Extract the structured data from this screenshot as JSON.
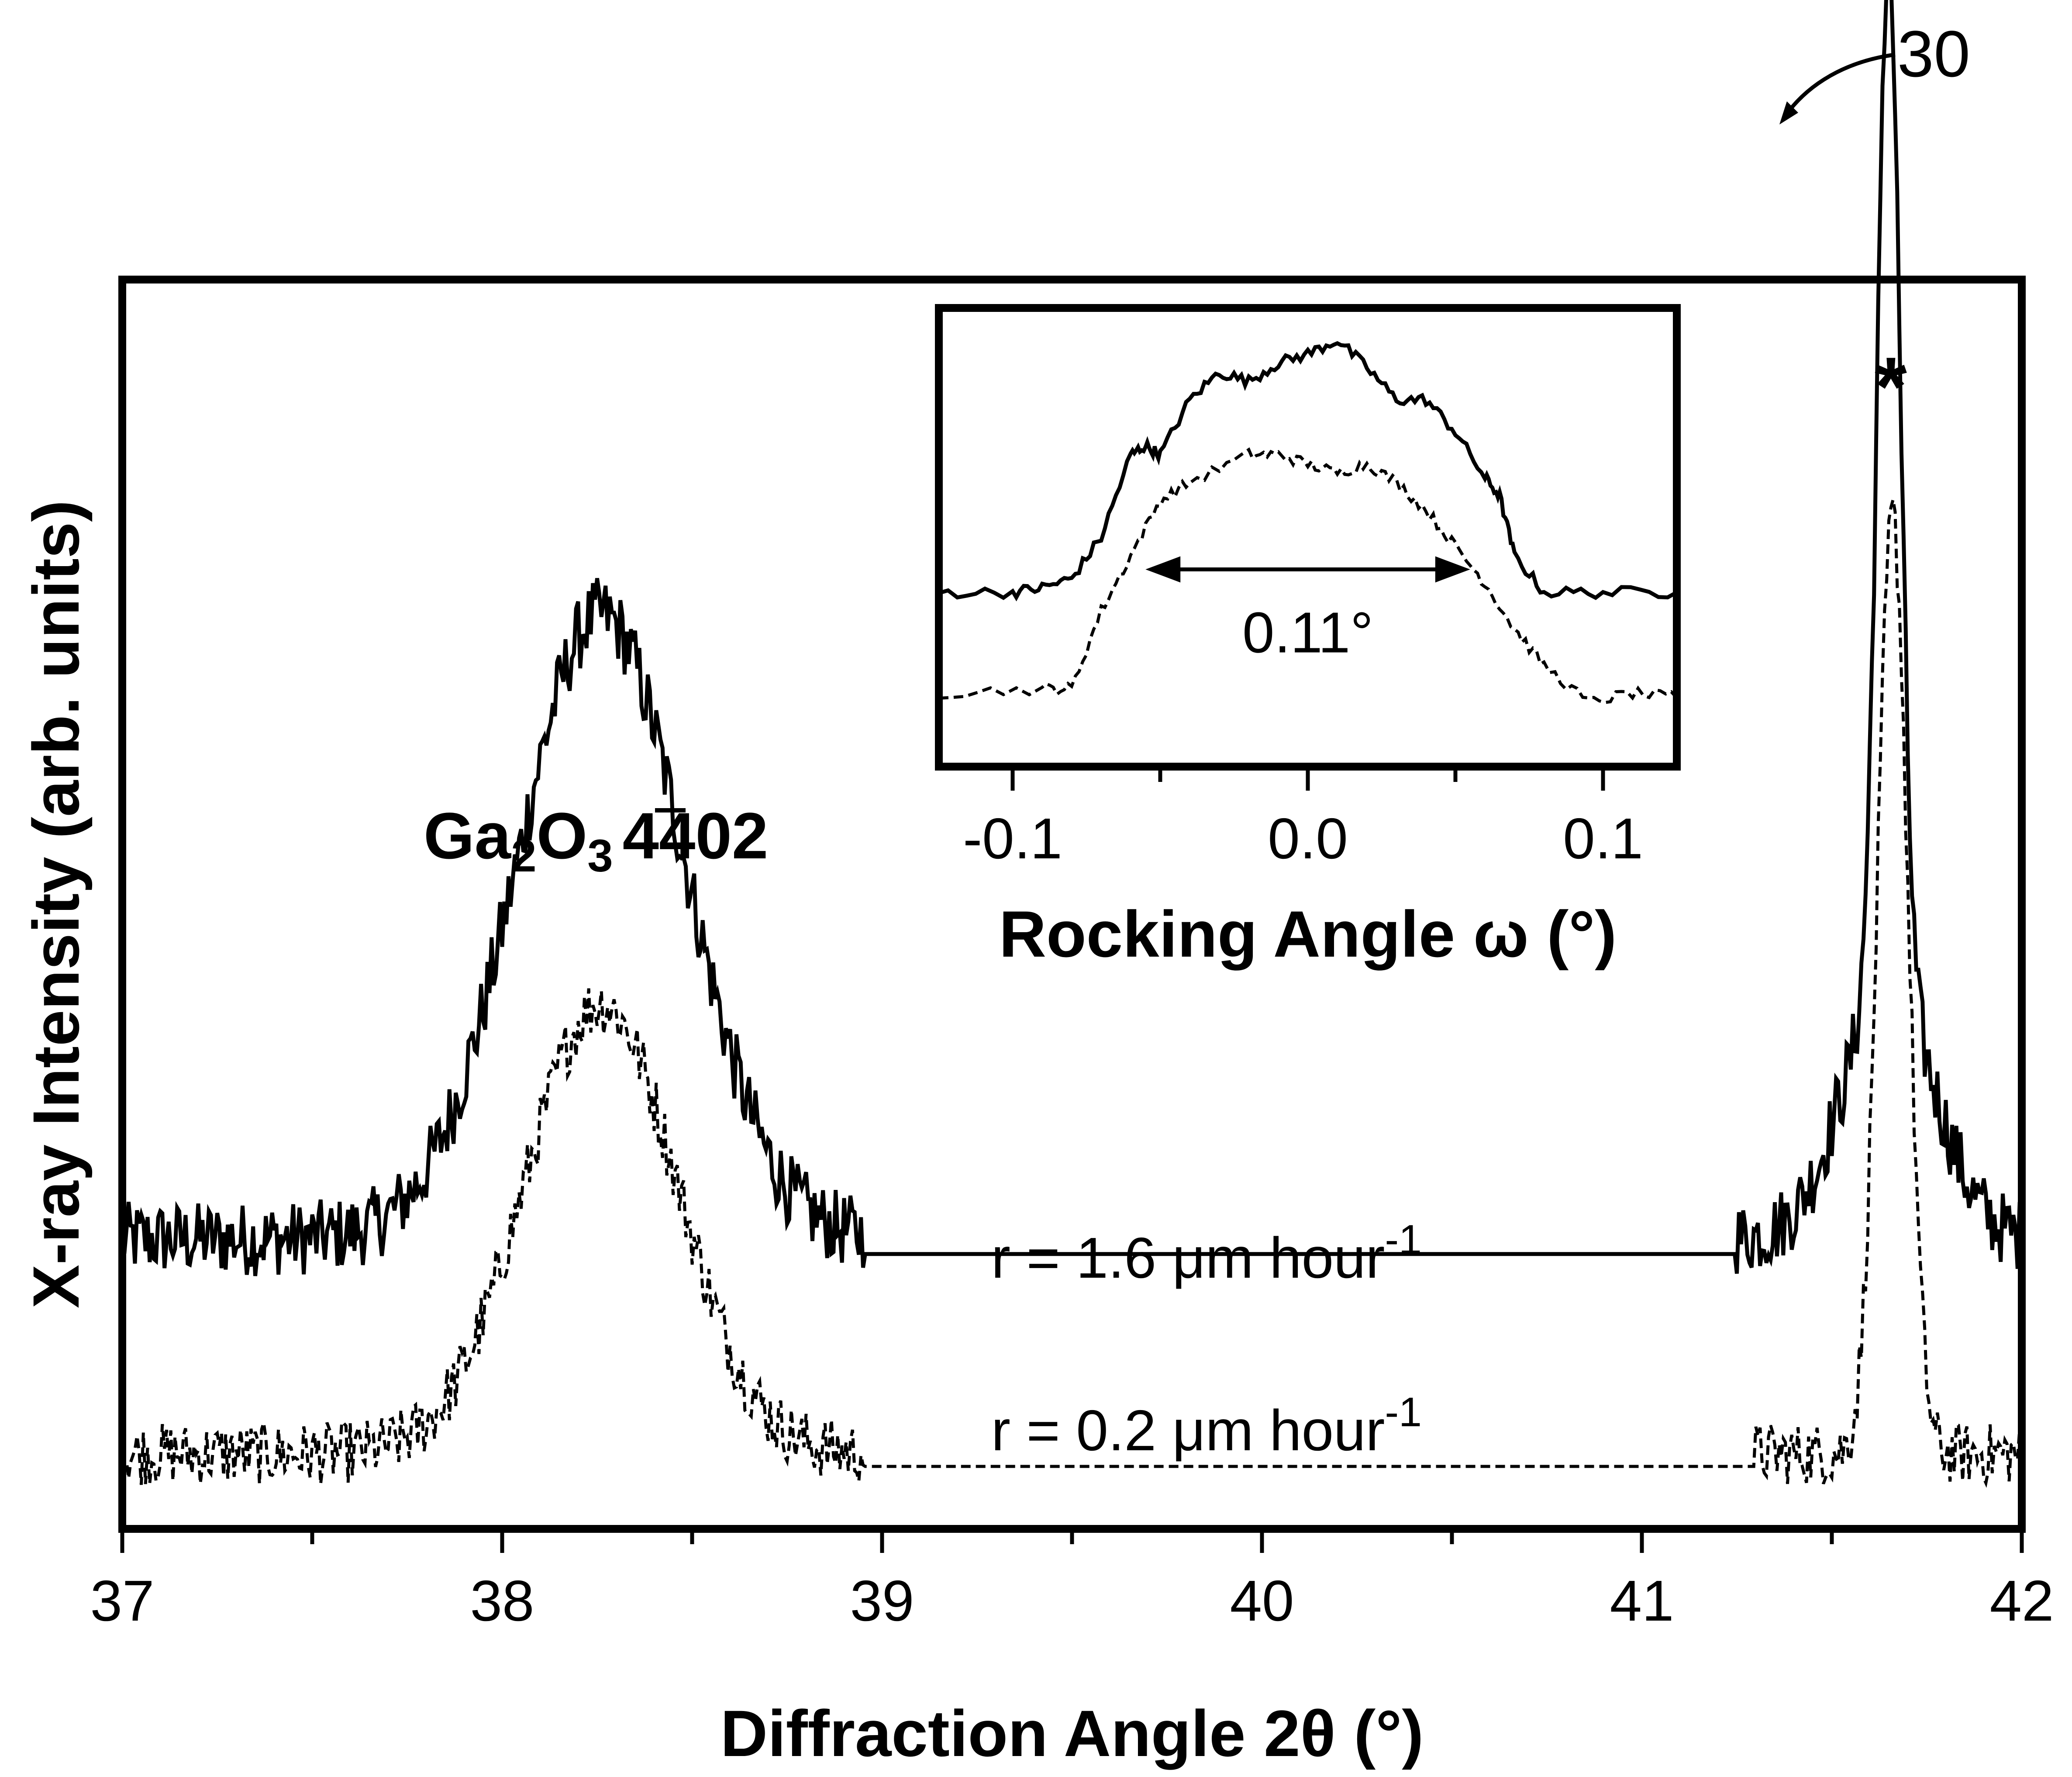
{
  "figure_number": "30",
  "colors": {
    "ink": "#000000",
    "background": "#ffffff"
  },
  "chart_data": [
    {
      "type": "line",
      "title": "",
      "xlabel": "Diffraction Angle 2θ (°)",
      "ylabel": "X-ray Intensity (arb. units)",
      "xlim": [
        37,
        42
      ],
      "ylim": [
        0,
        1
      ],
      "x_ticks": [
        "37",
        "38",
        "39",
        "40",
        "41",
        "42"
      ],
      "y_ticks": [],
      "grid": false,
      "legend": "none",
      "annotations": {
        "peak_label": {
          "base": "Ga",
          "sub1": "2",
          "mid": "O",
          "sub2": "3",
          "miller": "402",
          "bar_over": "4"
        },
        "substrate_marker": "*",
        "series_1_label": {
          "prefix": "r = 1.6 μm hour",
          "sup": "-1"
        },
        "series_2_label": {
          "prefix": "r = 0.2 μm hour",
          "sup": "-1"
        }
      },
      "series": [
        {
          "name": "r = 1.6 μm hour-1",
          "style": "solid",
          "baseline": 0.22,
          "x_range": [
            37,
            42
          ],
          "gap": [
            38.95,
            41.25
          ],
          "peaks": [
            {
              "center": 38.26,
              "height": 0.5,
              "sigma": 0.22
            },
            {
              "center": 41.65,
              "height": 0.82,
              "sigma": 0.03
            },
            {
              "center": 41.65,
              "height": 0.2,
              "sigma": 0.12
            }
          ]
        },
        {
          "name": "r = 0.2 μm hour-1",
          "style": "dashed",
          "baseline": 0.05,
          "x_range": [
            37,
            42
          ],
          "gap": [
            38.95,
            41.3
          ],
          "peaks": [
            {
              "center": 38.26,
              "height": 0.36,
              "sigma": 0.2
            },
            {
              "center": 41.66,
              "height": 0.75,
              "sigma": 0.04
            }
          ]
        }
      ]
    },
    {
      "type": "line",
      "title": "",
      "xlabel": "Rocking Angle ω (°)",
      "ylabel": "",
      "xlim": [
        -0.125,
        0.125
      ],
      "ylim": [
        0,
        1
      ],
      "x_ticks": [
        "-0.1",
        "0.0",
        "0.1"
      ],
      "grid": false,
      "legend": "none",
      "fwhm_annotation": "0.11°",
      "fwhm_range": [
        -0.055,
        0.055
      ],
      "series": [
        {
          "name": "",
          "style": "solid",
          "baseline": 0.38,
          "x": [
            -0.125,
            -0.1,
            -0.09,
            -0.08,
            -0.07,
            -0.06,
            -0.055,
            -0.05,
            -0.04,
            -0.03,
            -0.02,
            -0.01,
            0.0,
            0.01,
            0.02,
            0.03,
            0.04,
            0.05,
            0.06,
            0.065,
            0.07,
            0.08,
            0.1,
            0.125
          ],
          "y": [
            0.38,
            0.38,
            0.39,
            0.41,
            0.5,
            0.68,
            0.7,
            0.68,
            0.8,
            0.86,
            0.84,
            0.88,
            0.9,
            0.93,
            0.87,
            0.8,
            0.8,
            0.73,
            0.63,
            0.59,
            0.46,
            0.38,
            0.38,
            0.38
          ]
        },
        {
          "name": "",
          "style": "dashed",
          "baseline": 0.17,
          "x": [
            -0.125,
            -0.09,
            -0.08,
            -0.07,
            -0.06,
            -0.05,
            -0.04,
            -0.02,
            -0.01,
            0.0,
            0.01,
            0.02,
            0.03,
            0.04,
            0.05,
            0.06,
            0.07,
            0.08,
            0.095,
            0.11,
            0.125
          ],
          "y": [
            0.16,
            0.17,
            0.17,
            0.34,
            0.46,
            0.58,
            0.62,
            0.68,
            0.68,
            0.66,
            0.64,
            0.66,
            0.62,
            0.56,
            0.48,
            0.4,
            0.3,
            0.22,
            0.14,
            0.16,
            0.15
          ]
        }
      ]
    }
  ]
}
